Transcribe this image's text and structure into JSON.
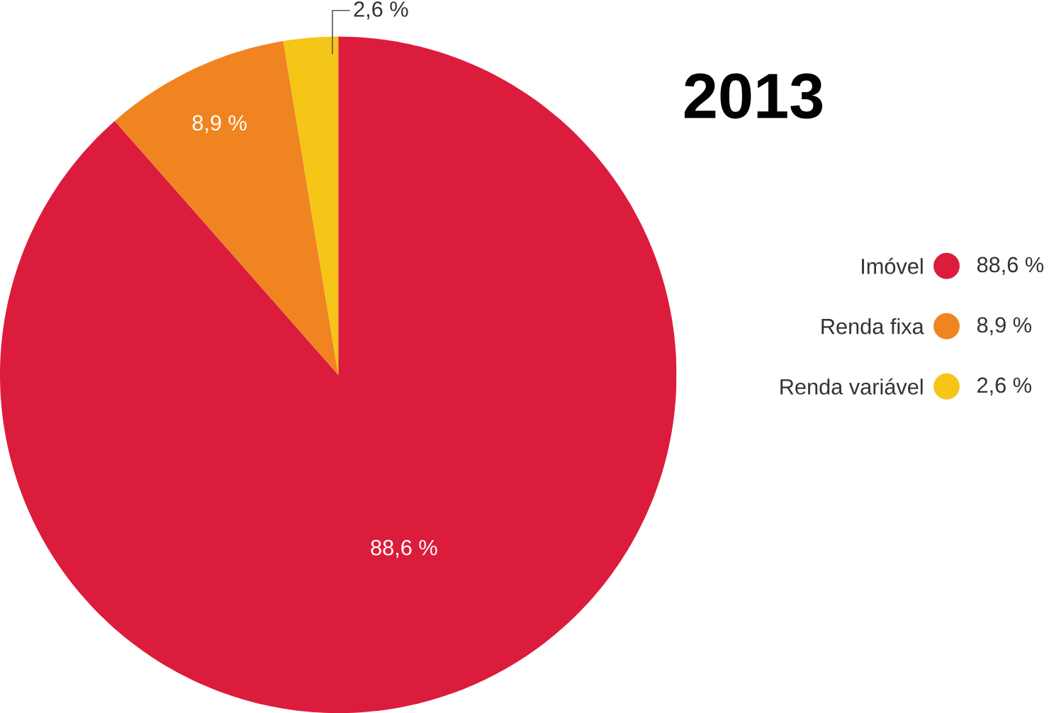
{
  "chart_data": {
    "type": "pie",
    "title": "2013",
    "categories": [
      "Imóvel",
      "Renda fixa",
      "Renda variável"
    ],
    "values": [
      88.6,
      8.9,
      2.6
    ],
    "value_labels": [
      "88,6 %",
      "8,9 %",
      "2,6 %"
    ],
    "colors": [
      "#dc1c3c",
      "#f08420",
      "#f5c518"
    ],
    "legend": "right"
  }
}
